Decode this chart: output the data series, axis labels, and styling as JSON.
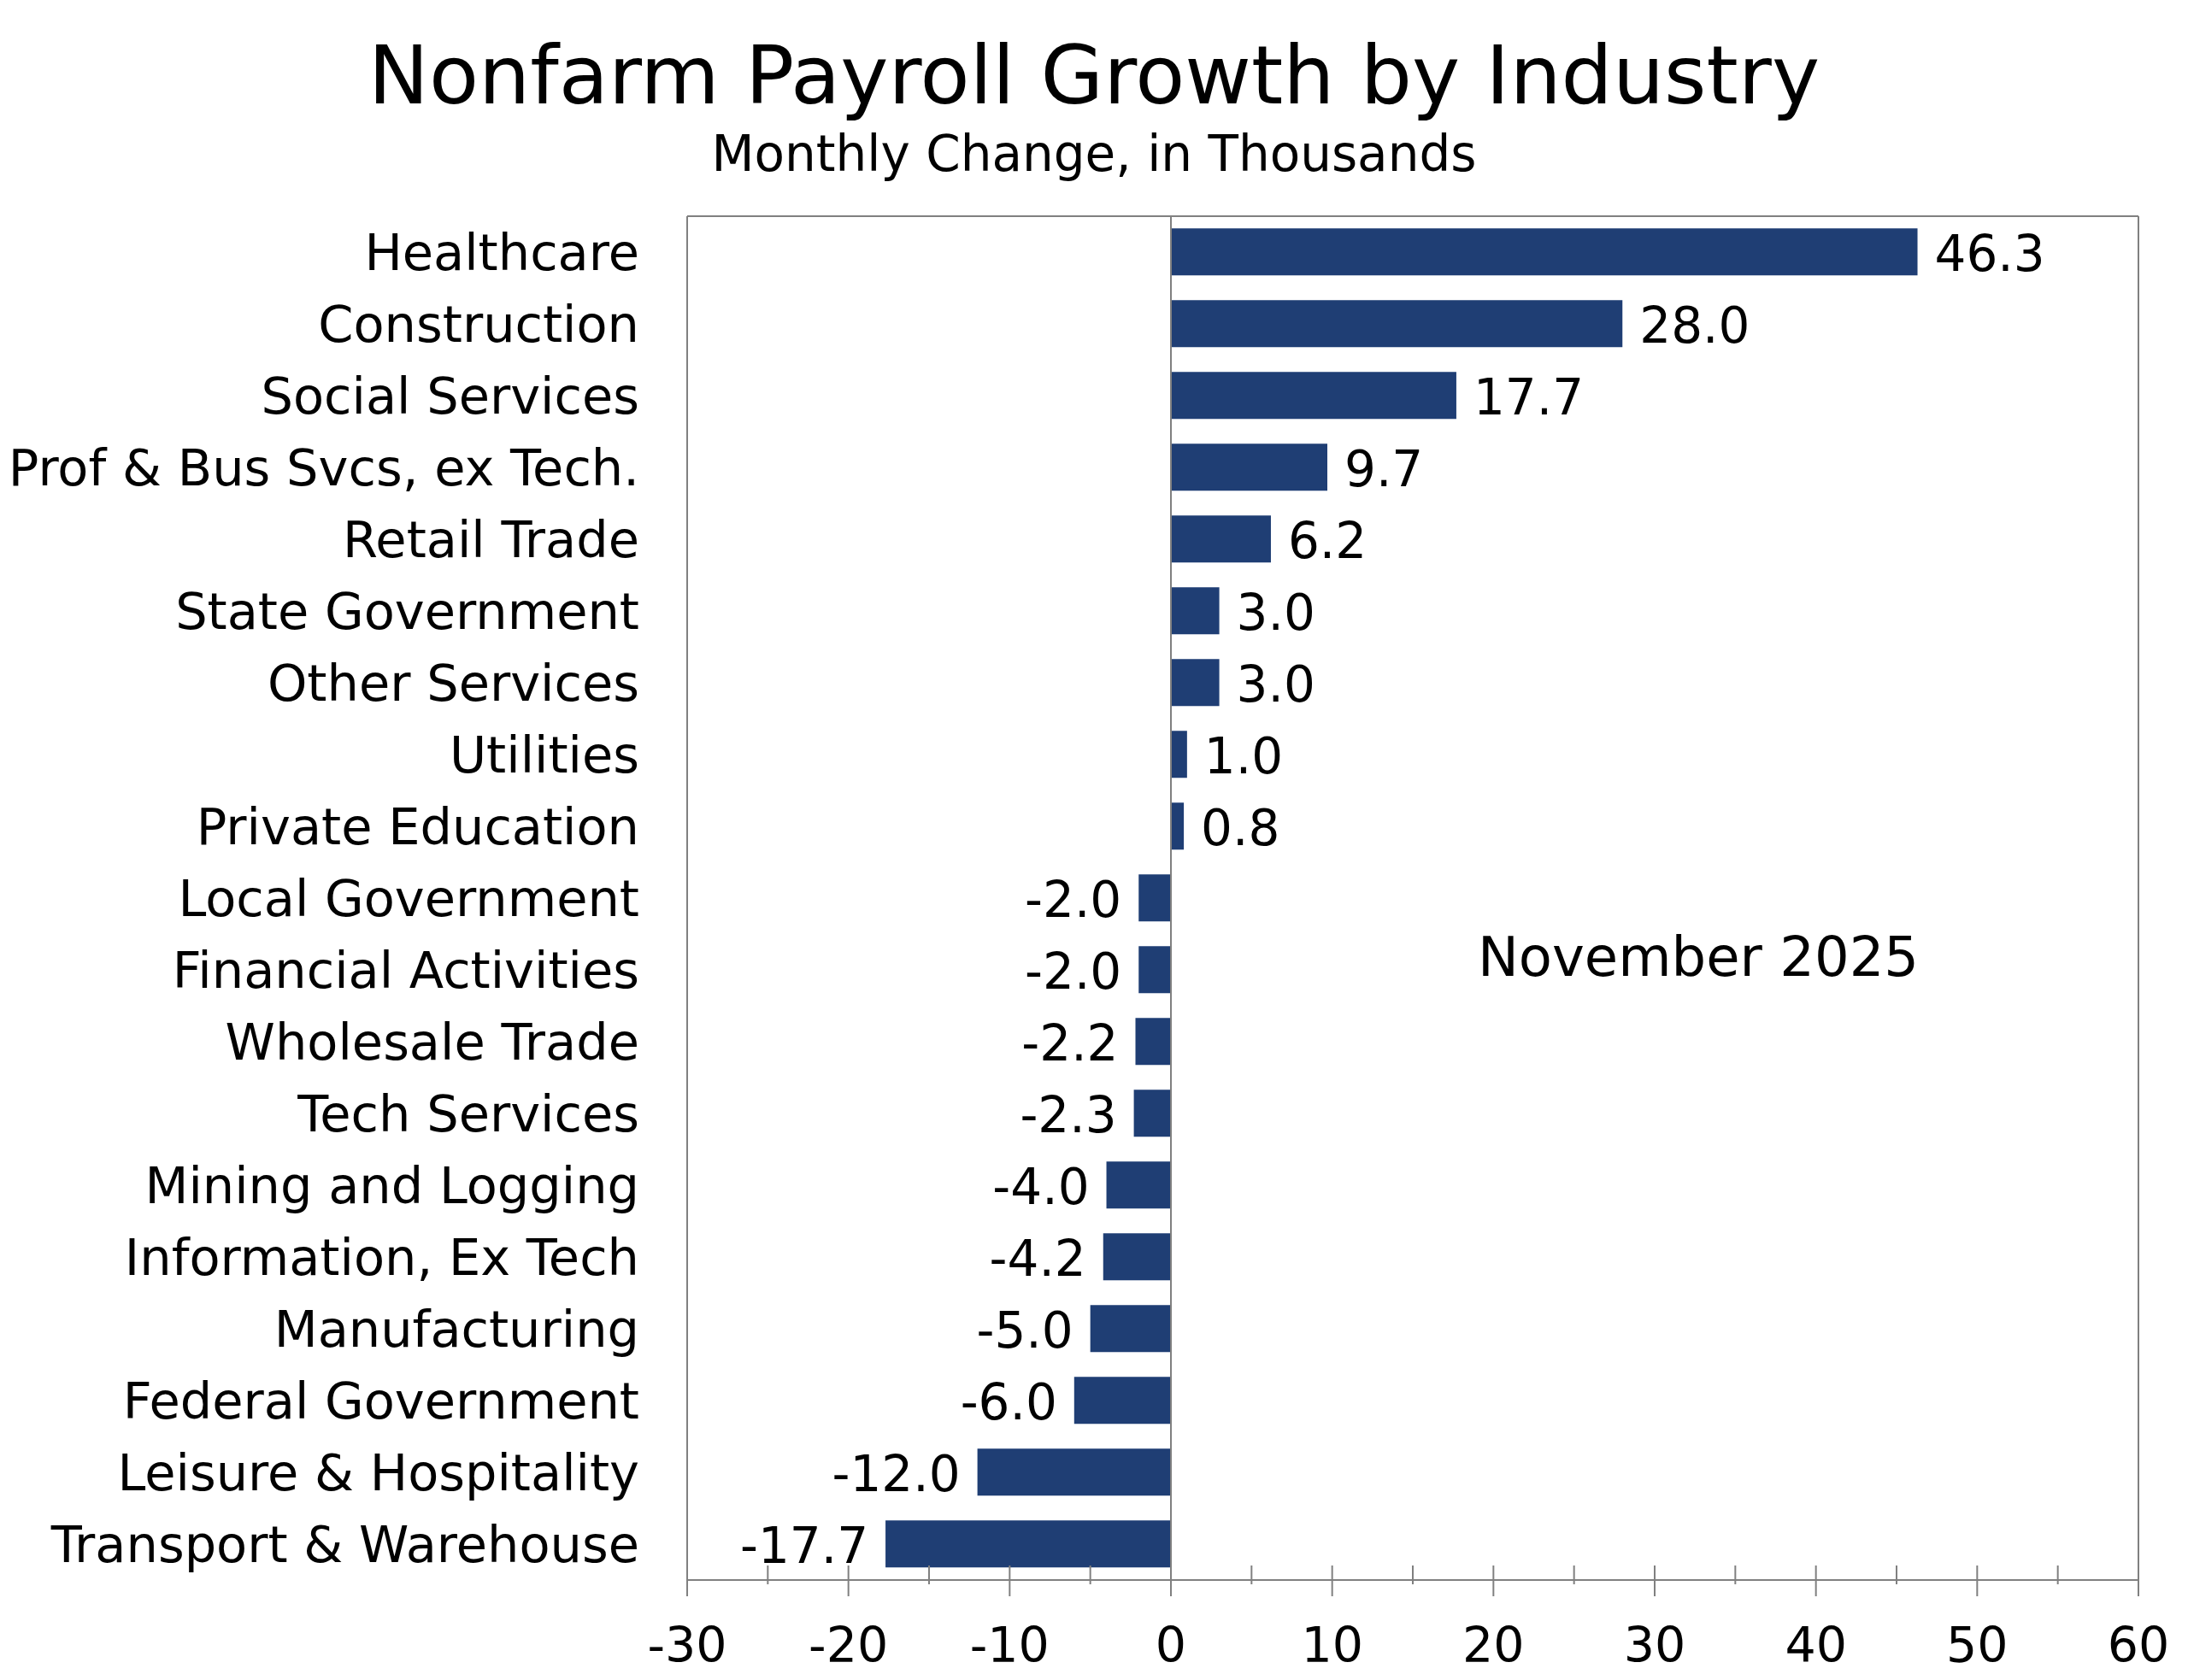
{
  "chart_data": {
    "type": "bar",
    "orientation": "horizontal",
    "title": "Nonfarm Payroll Growth by Industry",
    "subtitle": "Monthly Change, in Thousands",
    "annotations": [
      "November 2025"
    ],
    "categories": [
      "Healthcare",
      "Construction",
      "Social Services",
      "Prof & Bus Svcs, ex Tech.",
      "Retail Trade",
      "State Government",
      "Other Services",
      "Utilities",
      "Private Education",
      "Local Government",
      "Financial Activities",
      "Wholesale Trade",
      "Tech Services",
      "Mining and Logging",
      "Information, Ex Tech",
      "Manufacturing",
      "Federal Government",
      "Leisure & Hospitality",
      "Transport & Warehouse"
    ],
    "values": [
      46.3,
      28.0,
      17.7,
      9.7,
      6.2,
      3.0,
      3.0,
      1.0,
      0.8,
      -2.0,
      -2.0,
      -2.2,
      -2.3,
      -4.0,
      -4.2,
      -5.0,
      -6.0,
      -12.0,
      -17.7
    ],
    "value_labels": [
      "46.3",
      "28.0",
      "17.7",
      "9.7",
      "6.2",
      "3.0",
      "3.0",
      "1.0",
      "0.8",
      "-2.0",
      "-2.0",
      "-2.2",
      "-2.3",
      "-4.0",
      "-4.2",
      "-5.0",
      "-6.0",
      "-12.0",
      "-17.7"
    ],
    "color": "#1f3e74",
    "xlim": [
      -30,
      60
    ],
    "xticks": [
      -30,
      {
        "value": -25,
        "label": null
      },
      -20,
      {
        "value": -15,
        "label": null
      },
      -10,
      {
        "value": -5,
        "label": null
      },
      0,
      {
        "value": 5,
        "label": null
      },
      10,
      {
        "value": 15,
        "label": null
      },
      20,
      {
        "value": 25,
        "label": null
      },
      30,
      {
        "value": 35,
        "label": null
      },
      40,
      {
        "value": 45,
        "label": null
      },
      50,
      {
        "value": 55,
        "label": null
      },
      60
    ]
  }
}
